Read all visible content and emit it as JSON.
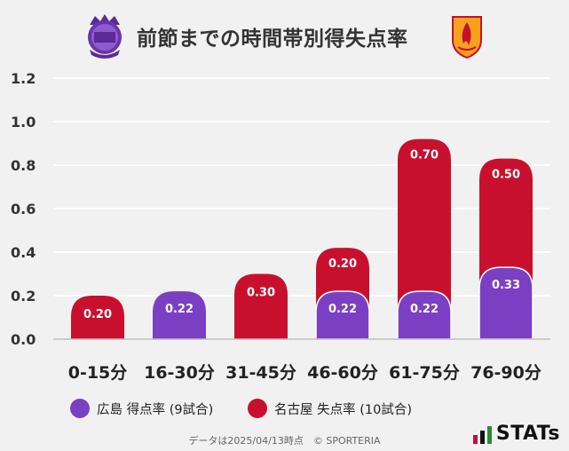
{
  "title": "前節までの時間帯別得失点率",
  "colors": {
    "hiroshima": "#7b3fc4",
    "nagoya": "#c8102e",
    "background": "#f1f1f1",
    "grid": "#ffffff"
  },
  "chart_data": {
    "type": "bar",
    "categories": [
      "0-15分",
      "16-30分",
      "31-45分",
      "46-60分",
      "61-75分",
      "76-90分"
    ],
    "series": [
      {
        "name": "広島 得点率 (9試合)",
        "color": "#7b3fc4",
        "values": [
          null,
          0.22,
          null,
          0.22,
          0.22,
          0.33
        ]
      },
      {
        "name": "名古屋 失点率 (10試合)",
        "color": "#c8102e",
        "values": [
          0.2,
          null,
          0.3,
          0.2,
          0.7,
          0.5
        ]
      }
    ],
    "yticks": [
      "0.0",
      "0.2",
      "0.4",
      "0.6",
      "0.8",
      "1.0",
      "1.2"
    ],
    "ylim": [
      0,
      1.2
    ],
    "grid": true,
    "legend_position": "bottom-left"
  },
  "legend": {
    "hiroshima": "広島 得点率 (9試合)",
    "nagoya": "名古屋 失点率 (10試合)"
  },
  "footnote": "データは2025/04/13時点　© SPORTERIA",
  "brand": "STATs",
  "logos": {
    "left": "hiroshima-crest",
    "right": "nagoya-crest"
  }
}
